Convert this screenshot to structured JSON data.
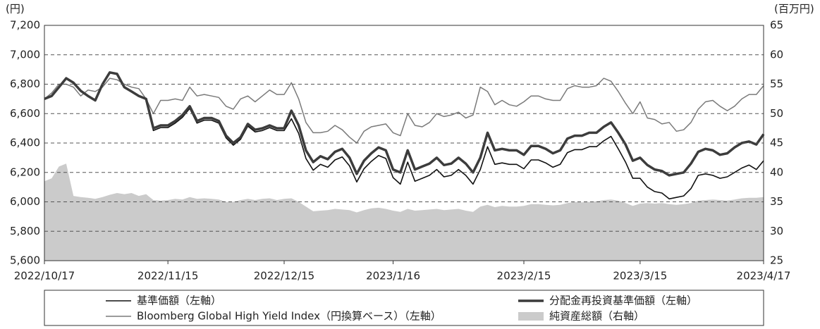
{
  "chart_data": {
    "type": "line",
    "y_unit": "(円)",
    "y2_unit": "(百万円)",
    "categories": [
      "2022/10/17",
      null,
      null,
      null,
      null,
      null,
      null,
      null,
      null,
      null,
      null,
      null,
      null,
      null,
      null,
      null,
      null,
      "2022/11/15",
      null,
      null,
      null,
      null,
      null,
      null,
      null,
      null,
      null,
      null,
      null,
      null,
      null,
      null,
      null,
      "2022/12/15",
      null,
      null,
      null,
      null,
      null,
      null,
      null,
      null,
      null,
      null,
      null,
      null,
      null,
      null,
      "2023/1/16",
      null,
      null,
      null,
      null,
      null,
      null,
      null,
      null,
      null,
      null,
      null,
      null,
      null,
      null,
      null,
      null,
      null,
      "2023/2/15",
      null,
      null,
      null,
      null,
      null,
      null,
      null,
      null,
      null,
      null,
      null,
      null,
      null,
      null,
      null,
      "2023/3/15",
      null,
      null,
      null,
      null,
      null,
      null,
      null,
      null,
      null,
      null,
      null,
      null,
      null,
      null,
      null,
      null,
      "2023/4/17"
    ],
    "series": [
      {
        "name": "純資産総額（右軸）",
        "type": "area",
        "axis": "y2",
        "color": "#cbcbcb",
        "values": [
          38.5,
          39,
          41,
          41.5,
          36,
          35.8,
          35.7,
          35.5,
          35.8,
          36.2,
          36.5,
          36.3,
          36.5,
          36,
          36.3,
          35.3,
          35.2,
          35.3,
          35.5,
          35.4,
          35.8,
          35.5,
          35.6,
          35.5,
          35.4,
          35,
          35,
          35.3,
          35.5,
          35.3,
          35.5,
          35.6,
          35.3,
          35.5,
          35.6,
          35,
          34.2,
          33.4,
          33.5,
          33.6,
          33.8,
          33.7,
          33.6,
          33.2,
          33.6,
          33.9,
          34,
          33.8,
          33.5,
          33.3,
          33.8,
          33.5,
          33.6,
          33.7,
          33.8,
          33.6,
          33.7,
          33.8,
          33.5,
          33.3,
          34.2,
          34.5,
          34.1,
          34.3,
          34.2,
          34.2,
          34.3,
          34.6,
          34.6,
          34.5,
          34.4,
          34.5,
          34.8,
          35,
          34.9,
          35,
          35.1,
          35.3,
          35.4,
          35.2,
          34.8,
          34.3,
          34.7,
          34.8,
          34.7,
          34.8,
          34.6,
          34.5,
          34.6,
          34.8,
          35.2,
          35.3,
          35.4,
          35.3,
          35.2,
          35.4,
          35.6,
          35.7,
          35.7,
          35.8
        ]
      },
      {
        "name": "Bloomberg Global High Yield Index（円換算ベース）（左軸）",
        "color": "#7a7a7a",
        "width": 1.5,
        "values": [
          6700,
          6740,
          6800,
          6800,
          6780,
          6720,
          6760,
          6750,
          6780,
          6840,
          6830,
          6800,
          6780,
          6770,
          6700,
          6600,
          6690,
          6690,
          6700,
          6690,
          6780,
          6720,
          6730,
          6720,
          6710,
          6650,
          6630,
          6700,
          6720,
          6680,
          6720,
          6760,
          6730,
          6730,
          6810,
          6700,
          6540,
          6470,
          6470,
          6480,
          6520,
          6490,
          6440,
          6400,
          6480,
          6510,
          6520,
          6530,
          6470,
          6450,
          6600,
          6520,
          6510,
          6540,
          6600,
          6580,
          6590,
          6610,
          6570,
          6590,
          6780,
          6750,
          6660,
          6690,
          6660,
          6650,
          6680,
          6720,
          6720,
          6700,
          6690,
          6690,
          6770,
          6790,
          6780,
          6780,
          6790,
          6840,
          6820,
          6750,
          6670,
          6600,
          6680,
          6570,
          6560,
          6530,
          6540,
          6480,
          6490,
          6540,
          6630,
          6680,
          6690,
          6650,
          6620,
          6650,
          6700,
          6730,
          6730,
          6790
        ]
      },
      {
        "name": "基準価額（左軸）",
        "color": "#111111",
        "width": 1.6,
        "values": [
          6700,
          6720,
          6780,
          6840,
          6810,
          6755,
          6720,
          6690,
          6800,
          6880,
          6870,
          6780,
          6750,
          6720,
          6700,
          6485,
          6505,
          6505,
          6535,
          6575,
          6635,
          6535,
          6555,
          6555,
          6535,
          6435,
          6385,
          6425,
          6515,
          6475,
          6485,
          6505,
          6485,
          6485,
          6565,
          6465,
          6295,
          6215,
          6255,
          6235,
          6285,
          6305,
          6245,
          6135,
          6225,
          6275,
          6315,
          6295,
          6165,
          6120,
          6270,
          6140,
          6160,
          6180,
          6220,
          6170,
          6180,
          6220,
          6180,
          6120,
          6220,
          6375,
          6255,
          6265,
          6255,
          6255,
          6225,
          6285,
          6285,
          6265,
          6235,
          6255,
          6335,
          6355,
          6355,
          6375,
          6375,
          6415,
          6445,
          6360,
          6270,
          6160,
          6160,
          6100,
          6070,
          6060,
          6020,
          6030,
          6040,
          6090,
          6180,
          6190,
          6180,
          6160,
          6170,
          6200,
          6230,
          6250,
          6220,
          6280
        ]
      },
      {
        "name": "分配金再投資基準価額（左軸）",
        "color": "#3c3c3c",
        "width": 3.5,
        "values": [
          6700,
          6720,
          6780,
          6840,
          6810,
          6755,
          6720,
          6690,
          6800,
          6880,
          6870,
          6780,
          6750,
          6720,
          6700,
          6500,
          6520,
          6520,
          6550,
          6590,
          6650,
          6550,
          6570,
          6570,
          6550,
          6450,
          6400,
          6440,
          6530,
          6490,
          6500,
          6520,
          6500,
          6500,
          6620,
          6520,
          6350,
          6270,
          6310,
          6290,
          6340,
          6360,
          6300,
          6190,
          6280,
          6330,
          6370,
          6350,
          6220,
          6200,
          6350,
          6220,
          6240,
          6260,
          6300,
          6250,
          6260,
          6300,
          6260,
          6200,
          6300,
          6470,
          6350,
          6360,
          6350,
          6350,
          6320,
          6380,
          6380,
          6360,
          6330,
          6350,
          6430,
          6450,
          6450,
          6470,
          6470,
          6510,
          6540,
          6470,
          6390,
          6280,
          6300,
          6250,
          6220,
          6210,
          6180,
          6190,
          6200,
          6260,
          6340,
          6360,
          6350,
          6320,
          6330,
          6370,
          6400,
          6410,
          6390,
          6460
        ]
      }
    ],
    "ylim": [
      5600,
      7200
    ],
    "yticks": [
      {
        "value": 5600,
        "label": "5,600"
      },
      {
        "value": 5800,
        "label": "5,800"
      },
      {
        "value": 6000,
        "label": "6,000"
      },
      {
        "value": 6200,
        "label": "6,200"
      },
      {
        "value": 6400,
        "label": "6,400"
      },
      {
        "value": 6600,
        "label": "6,600"
      },
      {
        "value": 6800,
        "label": "6,800"
      },
      {
        "value": 7000,
        "label": "7,000"
      },
      {
        "value": 7200,
        "label": "7,200"
      }
    ],
    "y2lim": [
      25,
      65
    ],
    "y2ticks": [
      25,
      30,
      35,
      40,
      45,
      50,
      55,
      60,
      65
    ],
    "grid": true,
    "legend": "bottom"
  }
}
